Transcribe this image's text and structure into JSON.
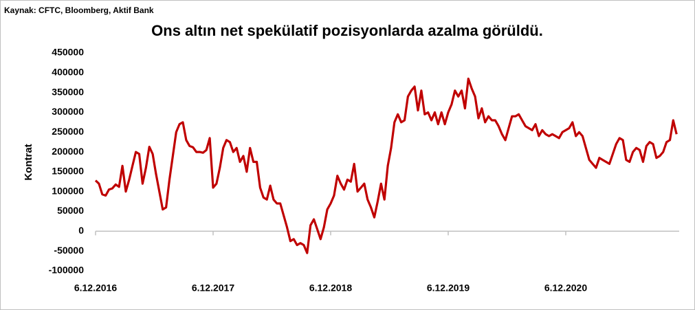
{
  "chart_data": {
    "type": "line",
    "source": "Kaynak: CFTC, Bloomberg, Aktif Bank",
    "title": "Ons altın net spekülatif pozisyonlarda azalma görüldü.",
    "y_label": "Kontrat",
    "categories": [
      "6.12.2016",
      null,
      null,
      null,
      null,
      null,
      null,
      null,
      null,
      null,
      null,
      null,
      null,
      null,
      null,
      null,
      null,
      null,
      null,
      null,
      null,
      null,
      null,
      null,
      null,
      null,
      null,
      null,
      null,
      null,
      null,
      null,
      null,
      null,
      null,
      "6.12.2017",
      null,
      null,
      null,
      null,
      null,
      null,
      null,
      null,
      null,
      null,
      null,
      null,
      null,
      null,
      null,
      null,
      null,
      null,
      null,
      null,
      null,
      null,
      null,
      null,
      null,
      null,
      null,
      null,
      null,
      null,
      null,
      null,
      null,
      null,
      "6.12.2018",
      null,
      null,
      null,
      null,
      null,
      null,
      null,
      null,
      null,
      null,
      null,
      null,
      null,
      null,
      null,
      null,
      null,
      null,
      null,
      null,
      null,
      null,
      null,
      null,
      null,
      null,
      null,
      null,
      null,
      null,
      null,
      null,
      null,
      null,
      "6.12.2019",
      null,
      null,
      null,
      null,
      null,
      null,
      null,
      null,
      null,
      null,
      null,
      null,
      null,
      null,
      null,
      null,
      null,
      null,
      null,
      null,
      null,
      null,
      null,
      null,
      null,
      null,
      null,
      null,
      null,
      null,
      null,
      null,
      null,
      null,
      "6.12.2020",
      null,
      null,
      null,
      null,
      null,
      null,
      null,
      null,
      null,
      null,
      null,
      null,
      null,
      null,
      null,
      null,
      null,
      null,
      null,
      null,
      null,
      null,
      null,
      null,
      null,
      null,
      null,
      null,
      null,
      null,
      null,
      null,
      null
    ],
    "series": [
      {
        "name": "Kontrat",
        "color": "#c00000",
        "values": [
          128000,
          120000,
          93000,
          90000,
          105000,
          108000,
          118000,
          112000,
          165000,
          100000,
          130000,
          165000,
          200000,
          195000,
          120000,
          160000,
          213000,
          195000,
          145000,
          100000,
          55000,
          60000,
          130000,
          190000,
          250000,
          270000,
          275000,
          230000,
          215000,
          212000,
          200000,
          200000,
          198000,
          205000,
          235000,
          110000,
          120000,
          160000,
          210000,
          230000,
          225000,
          200000,
          210000,
          175000,
          190000,
          150000,
          210000,
          175000,
          175000,
          110000,
          85000,
          80000,
          115000,
          80000,
          70000,
          70000,
          40000,
          10000,
          -25000,
          -20000,
          -35000,
          -30000,
          -35000,
          -55000,
          15000,
          30000,
          5000,
          -20000,
          10000,
          55000,
          70000,
          90000,
          140000,
          120000,
          105000,
          130000,
          125000,
          170000,
          100000,
          110000,
          120000,
          80000,
          60000,
          35000,
          75000,
          120000,
          80000,
          165000,
          210000,
          275000,
          295000,
          275000,
          280000,
          340000,
          355000,
          365000,
          305000,
          355000,
          295000,
          300000,
          280000,
          300000,
          270000,
          300000,
          270000,
          300000,
          320000,
          355000,
          340000,
          355000,
          310000,
          385000,
          360000,
          340000,
          285000,
          310000,
          275000,
          290000,
          280000,
          280000,
          265000,
          245000,
          230000,
          260000,
          290000,
          290000,
          295000,
          280000,
          265000,
          260000,
          255000,
          270000,
          240000,
          255000,
          245000,
          240000,
          245000,
          240000,
          235000,
          250000,
          255000,
          260000,
          275000,
          240000,
          250000,
          240000,
          210000,
          180000,
          170000,
          160000,
          185000,
          180000,
          175000,
          170000,
          195000,
          220000,
          235000,
          230000,
          180000,
          175000,
          200000,
          210000,
          205000,
          175000,
          215000,
          225000,
          220000,
          185000,
          190000,
          200000,
          225000,
          230000,
          280000,
          245000
        ]
      }
    ],
    "ylim": [
      -100000,
      450000
    ],
    "yticks": [
      -100000,
      -50000,
      0,
      50000,
      100000,
      150000,
      200000,
      250000,
      300000,
      350000,
      400000,
      450000
    ],
    "grid": false
  }
}
